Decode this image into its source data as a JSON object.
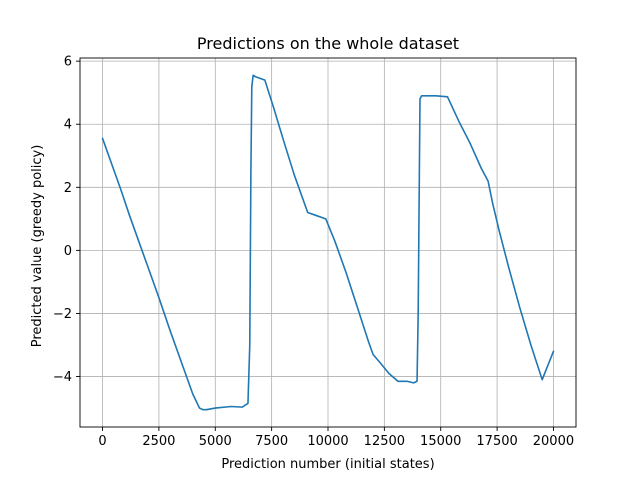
{
  "chart_data": {
    "type": "line",
    "title": "Predictions on the whole dataset",
    "xlabel": "Prediction number (initial states)",
    "ylabel": "Predicted value (greedy policy)",
    "xlim": [
      -1000,
      21000
    ],
    "ylim": [
      -5.6,
      6.1
    ],
    "xticks": [
      0,
      2500,
      5000,
      7500,
      10000,
      12500,
      15000,
      17500,
      20000
    ],
    "xtick_labels": [
      "0",
      "2500",
      "5000",
      "7500",
      "10000",
      "12500",
      "15000",
      "17500",
      "20000"
    ],
    "yticks": [
      -4,
      -2,
      0,
      2,
      4,
      6
    ],
    "ytick_labels": [
      "−4",
      "−2",
      "0",
      "2",
      "4",
      "6"
    ],
    "grid": true,
    "legend": "none",
    "colors": {
      "series": "#1f77b4",
      "grid": "#b0b0b0",
      "axes": "#000000"
    },
    "series": [
      {
        "x": [
          0,
          400,
          800,
          1200,
          1600,
          2000,
          2500,
          3000,
          3500,
          4000,
          4300,
          4450,
          4600,
          5000,
          5700,
          6200,
          6450,
          6530,
          6580,
          6620,
          6680,
          6800,
          7000,
          7200,
          7600,
          8000,
          8500,
          9100,
          9500,
          9900,
          10300,
          10800,
          11300,
          11800,
          12000,
          12300,
          12700,
          13100,
          13500,
          13800,
          13950,
          14000,
          14080,
          14150,
          14300,
          14800,
          15300,
          15800,
          16300,
          16800,
          17100,
          17300,
          17600,
          18000,
          18500,
          19000,
          19500,
          20000
        ],
        "y": [
          3.55,
          2.75,
          1.95,
          1.1,
          0.3,
          -0.5,
          -1.5,
          -2.55,
          -3.55,
          -4.55,
          -5.0,
          -5.05,
          -5.05,
          -5.0,
          -4.95,
          -4.97,
          -4.85,
          -3.0,
          2.5,
          5.2,
          5.55,
          5.5,
          5.45,
          5.4,
          4.5,
          3.55,
          2.4,
          1.2,
          1.1,
          1.0,
          0.3,
          -0.7,
          -1.8,
          -2.9,
          -3.3,
          -3.55,
          -3.9,
          -4.15,
          -4.15,
          -4.2,
          -4.15,
          -2.0,
          4.8,
          4.9,
          4.9,
          4.9,
          4.87,
          4.1,
          3.4,
          2.6,
          2.2,
          1.5,
          0.6,
          -0.5,
          -1.8,
          -3.0,
          -4.1,
          -3.2
        ]
      }
    ]
  }
}
